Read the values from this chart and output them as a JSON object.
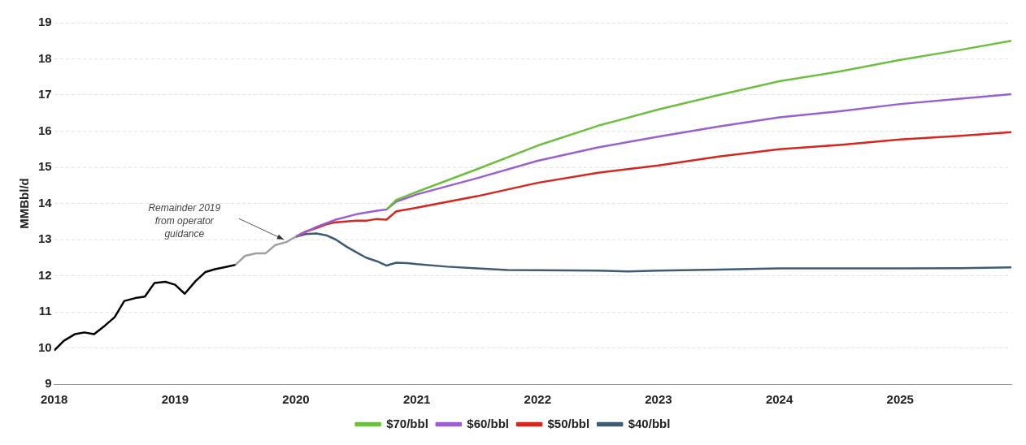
{
  "chart_data": {
    "type": "line",
    "ylabel": "MMBbl/d",
    "xlim": [
      2018,
      2025.92
    ],
    "xticks": [
      2018,
      2019,
      2020,
      2021,
      2022,
      2023,
      2024,
      2025
    ],
    "ylim": [
      9,
      19
    ],
    "yticks": [
      9,
      10,
      11,
      12,
      13,
      14,
      15,
      16,
      17,
      18,
      19
    ],
    "grid": "y",
    "legend": "bottom",
    "annotations": [
      "Remainder 2019 from operator guidance"
    ],
    "series": [
      {
        "color": "#000000",
        "x": [
          2018,
          2018.08,
          2018.17,
          2018.25,
          2018.33,
          2018.42,
          2018.5,
          2018.58,
          2018.67,
          2018.75,
          2018.83,
          2018.92,
          2019,
          2019.08,
          2019.17,
          2019.25,
          2019.33,
          2019.42,
          2019.5
        ],
        "values": [
          9.93,
          10.2,
          10.38,
          10.43,
          10.38,
          10.62,
          10.85,
          11.3,
          11.38,
          11.42,
          11.8,
          11.83,
          11.75,
          11.5,
          11.85,
          12.1,
          12.18,
          12.24,
          12.3
        ]
      },
      {
        "color": "#a0a0a0",
        "x": [
          2019.5,
          2019.58,
          2019.67,
          2019.75,
          2019.83,
          2019.92,
          2020
        ],
        "values": [
          12.3,
          12.55,
          12.62,
          12.62,
          12.85,
          12.93,
          13.08
        ]
      },
      {
        "name": "$70/bbl",
        "color": "#6cbf3f",
        "x": [
          2020.75,
          2020.83,
          2021,
          2021.5,
          2022,
          2022.5,
          2023,
          2023.5,
          2024,
          2024.5,
          2025,
          2025.5,
          2025.92
        ],
        "values": [
          13.83,
          14.1,
          14.32,
          14.95,
          15.6,
          16.15,
          16.6,
          17.0,
          17.38,
          17.65,
          17.97,
          18.25,
          18.5
        ]
      },
      {
        "name": "$60/bbl",
        "color": "#9a5fd0",
        "x": [
          2020,
          2020.17,
          2020.33,
          2020.5,
          2020.67,
          2020.75,
          2020.83,
          2021,
          2021.5,
          2022,
          2022.5,
          2023,
          2023.5,
          2024,
          2024.5,
          2025,
          2025.5,
          2025.92
        ],
        "values": [
          13.08,
          13.35,
          13.55,
          13.7,
          13.8,
          13.83,
          14.05,
          14.25,
          14.7,
          15.18,
          15.55,
          15.85,
          16.13,
          16.38,
          16.55,
          16.75,
          16.9,
          17.02
        ]
      },
      {
        "name": "$50/bbl",
        "color": "#d7261e",
        "x": [
          2020,
          2020.08,
          2020.17,
          2020.25,
          2020.33,
          2020.5,
          2020.58,
          2020.67,
          2020.75,
          2020.83,
          2021,
          2021.5,
          2022,
          2022.5,
          2023,
          2023.5,
          2024,
          2024.5,
          2025,
          2025.5,
          2025.92
        ],
        "values": [
          13.08,
          13.22,
          13.32,
          13.42,
          13.48,
          13.52,
          13.52,
          13.57,
          13.55,
          13.78,
          13.88,
          14.2,
          14.57,
          14.85,
          15.05,
          15.3,
          15.5,
          15.62,
          15.77,
          15.87,
          15.97
        ]
      },
      {
        "name": "$40/bbl",
        "color": "#3f5b73",
        "x": [
          2020,
          2020.08,
          2020.17,
          2020.25,
          2020.33,
          2020.42,
          2020.5,
          2020.58,
          2020.67,
          2020.75,
          2020.83,
          2020.92,
          2021,
          2021.25,
          2021.5,
          2021.75,
          2022,
          2022.5,
          2022.75,
          2023,
          2023.5,
          2024,
          2024.5,
          2025,
          2025.5,
          2025.92
        ],
        "values": [
          13.08,
          13.15,
          13.17,
          13.12,
          13.0,
          12.8,
          12.65,
          12.5,
          12.4,
          12.28,
          12.36,
          12.35,
          12.32,
          12.25,
          12.2,
          12.16,
          12.15,
          12.14,
          12.12,
          12.14,
          12.17,
          12.2,
          12.2,
          12.2,
          12.21,
          12.23
        ]
      }
    ]
  }
}
